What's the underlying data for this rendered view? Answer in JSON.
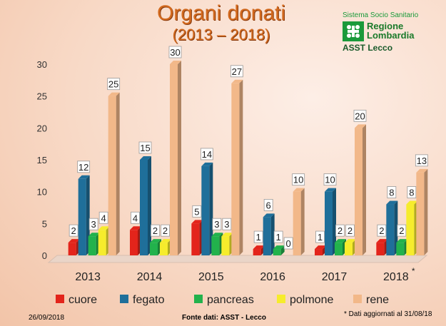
{
  "header": {
    "title_line1": "Organi donati",
    "title_line2": "(2013 – 2018)"
  },
  "logo": {
    "system": "Sistema Socio Sanitario",
    "region": "Regione Lombardia",
    "unit": "ASST Lecco"
  },
  "footer": {
    "date": "26/09/2018",
    "source": "Fonte dati: ASST - Lecco",
    "note": "* Dati aggiornati al 31/08/18"
  },
  "chart_data": {
    "type": "bar",
    "title": "Organi donati (2013 – 2018)",
    "categories": [
      "2013",
      "2014",
      "2015",
      "2016",
      "2017",
      "2018"
    ],
    "category_marks": [
      "",
      "",
      "",
      "",
      "",
      "*"
    ],
    "series": [
      {
        "name": "cuore",
        "color": "#e3241b",
        "values": [
          2,
          4,
          5,
          1,
          1,
          2
        ]
      },
      {
        "name": "fegato",
        "color": "#1f6f9a",
        "values": [
          12,
          15,
          14,
          6,
          10,
          8
        ]
      },
      {
        "name": "pancreas",
        "color": "#22b24c",
        "values": [
          3,
          2,
          3,
          1,
          2,
          2
        ]
      },
      {
        "name": "polmone",
        "color": "#f6ec2c",
        "values": [
          4,
          2,
          3,
          0,
          2,
          8
        ]
      },
      {
        "name": "rene",
        "color": "#f2b889",
        "values": [
          25,
          30,
          27,
          10,
          20,
          13
        ]
      }
    ],
    "yticks": [
      0,
      5,
      10,
      15,
      20,
      25,
      30
    ],
    "ylim": [
      0,
      30
    ],
    "grid": false,
    "legend": "bottom"
  }
}
